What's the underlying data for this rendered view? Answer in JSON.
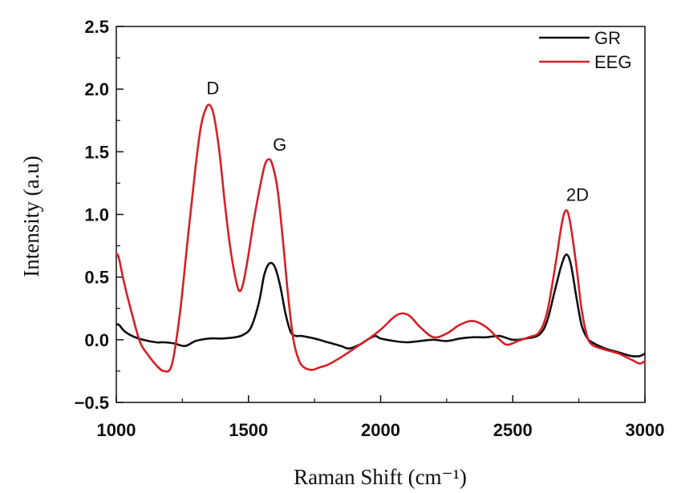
{
  "chart_data": {
    "type": "line",
    "xlabel": "Raman Shift (cm⁻¹)",
    "ylabel": "Intensity (a.u)",
    "xlim": [
      1000,
      3000
    ],
    "ylim": [
      -0.5,
      2.5
    ],
    "xticks": [
      1000,
      1500,
      2000,
      2500,
      3000
    ],
    "yticks": [
      -0.5,
      0.0,
      0.5,
      1.0,
      1.5,
      2.0,
      2.5
    ],
    "ytick_labels": [
      "−0.5",
      "0.0",
      "0.5",
      "1.0",
      "1.5",
      "2.0",
      "2.5"
    ],
    "grid": false,
    "legend": "top-right",
    "series": [
      {
        "name": "GR",
        "color": "#111111",
        "points": [
          [
            1000,
            0.12
          ],
          [
            1010,
            0.12
          ],
          [
            1030,
            0.07
          ],
          [
            1060,
            0.03
          ],
          [
            1100,
            0.0
          ],
          [
            1150,
            -0.02
          ],
          [
            1180,
            -0.02
          ],
          [
            1220,
            -0.03
          ],
          [
            1260,
            -0.05
          ],
          [
            1300,
            -0.01
          ],
          [
            1350,
            0.01
          ],
          [
            1400,
            0.01
          ],
          [
            1450,
            0.02
          ],
          [
            1480,
            0.04
          ],
          [
            1510,
            0.1
          ],
          [
            1540,
            0.3
          ],
          [
            1560,
            0.52
          ],
          [
            1580,
            0.61
          ],
          [
            1600,
            0.58
          ],
          [
            1620,
            0.43
          ],
          [
            1640,
            0.21
          ],
          [
            1660,
            0.06
          ],
          [
            1680,
            0.03
          ],
          [
            1700,
            0.03
          ],
          [
            1750,
            0.01
          ],
          [
            1800,
            -0.02
          ],
          [
            1850,
            -0.05
          ],
          [
            1880,
            -0.07
          ],
          [
            1920,
            -0.04
          ],
          [
            1950,
            0.0
          ],
          [
            1980,
            0.03
          ],
          [
            2000,
            0.01
          ],
          [
            2050,
            -0.01
          ],
          [
            2100,
            -0.02
          ],
          [
            2150,
            -0.01
          ],
          [
            2200,
            0.0
          ],
          [
            2250,
            -0.01
          ],
          [
            2300,
            0.01
          ],
          [
            2350,
            0.02
          ],
          [
            2400,
            0.02
          ],
          [
            2450,
            0.03
          ],
          [
            2500,
            0.0
          ],
          [
            2550,
            0.01
          ],
          [
            2600,
            0.04
          ],
          [
            2630,
            0.15
          ],
          [
            2660,
            0.4
          ],
          [
            2685,
            0.6
          ],
          [
            2703,
            0.68
          ],
          [
            2720,
            0.6
          ],
          [
            2740,
            0.35
          ],
          [
            2760,
            0.12
          ],
          [
            2780,
            0.02
          ],
          [
            2800,
            -0.02
          ],
          [
            2850,
            -0.07
          ],
          [
            2900,
            -0.1
          ],
          [
            2950,
            -0.13
          ],
          [
            2980,
            -0.13
          ],
          [
            3000,
            -0.11
          ]
        ]
      },
      {
        "name": "EEG",
        "color": "#d62028",
        "points": [
          [
            1000,
            0.69
          ],
          [
            1010,
            0.65
          ],
          [
            1030,
            0.45
          ],
          [
            1060,
            0.2
          ],
          [
            1090,
            -0.02
          ],
          [
            1120,
            -0.12
          ],
          [
            1150,
            -0.2
          ],
          [
            1180,
            -0.25
          ],
          [
            1210,
            -0.2
          ],
          [
            1240,
            0.2
          ],
          [
            1270,
            0.8
          ],
          [
            1300,
            1.38
          ],
          [
            1320,
            1.7
          ],
          [
            1340,
            1.85
          ],
          [
            1355,
            1.87
          ],
          [
            1370,
            1.78
          ],
          [
            1390,
            1.5
          ],
          [
            1410,
            1.1
          ],
          [
            1430,
            0.75
          ],
          [
            1450,
            0.5
          ],
          [
            1465,
            0.39
          ],
          [
            1480,
            0.45
          ],
          [
            1500,
            0.68
          ],
          [
            1520,
            0.95
          ],
          [
            1540,
            1.18
          ],
          [
            1560,
            1.38
          ],
          [
            1575,
            1.44
          ],
          [
            1590,
            1.4
          ],
          [
            1610,
            1.2
          ],
          [
            1630,
            0.8
          ],
          [
            1650,
            0.35
          ],
          [
            1670,
            0.0
          ],
          [
            1690,
            -0.16
          ],
          [
            1710,
            -0.22
          ],
          [
            1740,
            -0.24
          ],
          [
            1770,
            -0.22
          ],
          [
            1800,
            -0.2
          ],
          [
            1850,
            -0.14
          ],
          [
            1900,
            -0.07
          ],
          [
            1950,
            0.0
          ],
          [
            2000,
            0.08
          ],
          [
            2050,
            0.18
          ],
          [
            2080,
            0.21
          ],
          [
            2110,
            0.19
          ],
          [
            2150,
            0.1
          ],
          [
            2200,
            0.02
          ],
          [
            2250,
            0.05
          ],
          [
            2300,
            0.12
          ],
          [
            2350,
            0.15
          ],
          [
            2400,
            0.1
          ],
          [
            2450,
            0.0
          ],
          [
            2480,
            -0.04
          ],
          [
            2520,
            -0.01
          ],
          [
            2560,
            0.02
          ],
          [
            2600,
            0.06
          ],
          [
            2630,
            0.22
          ],
          [
            2660,
            0.58
          ],
          [
            2685,
            0.92
          ],
          [
            2700,
            1.03
          ],
          [
            2715,
            0.96
          ],
          [
            2740,
            0.6
          ],
          [
            2760,
            0.25
          ],
          [
            2780,
            0.04
          ],
          [
            2800,
            -0.04
          ],
          [
            2850,
            -0.08
          ],
          [
            2900,
            -0.11
          ],
          [
            2950,
            -0.16
          ],
          [
            2980,
            -0.19
          ],
          [
            3000,
            -0.17
          ]
        ]
      }
    ],
    "annotations": [
      {
        "text": "D",
        "x": 1365,
        "y": 1.96
      },
      {
        "text": "G",
        "x": 1618,
        "y": 1.51
      },
      {
        "text": "2D",
        "x": 2745,
        "y": 1.11
      }
    ]
  }
}
